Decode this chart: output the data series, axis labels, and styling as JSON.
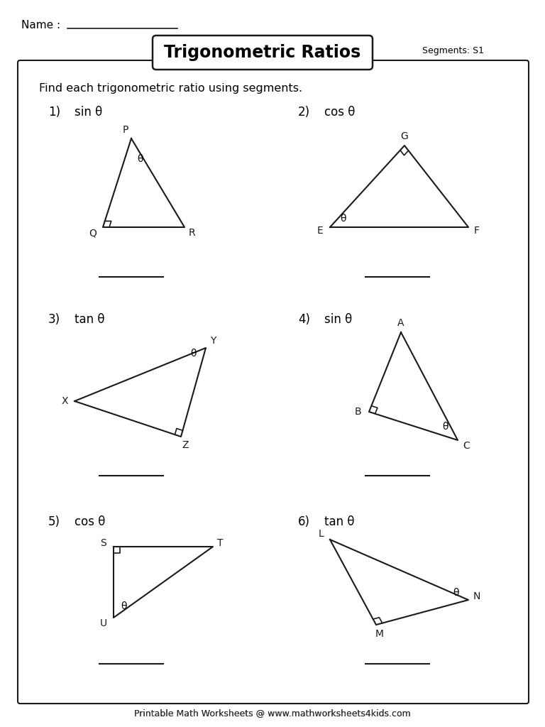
{
  "title": "Trigonometric Ratios",
  "segments_label": "Segments: S1",
  "name_label": "Name :",
  "instruction": "Find each trigonometric ratio using segments.",
  "footer": "Printable Math Worksheets @ www.mathworksheets4kids.com",
  "problems": [
    {
      "num": "1)",
      "func": "sin θ"
    },
    {
      "num": "2)",
      "func": "cos θ"
    },
    {
      "num": "3)",
      "func": "tan θ"
    },
    {
      "num": "4)",
      "func": "sin θ"
    },
    {
      "num": "5)",
      "func": "cos θ"
    },
    {
      "num": "6)",
      "func": "tan θ"
    }
  ],
  "bg_color": "#ffffff",
  "text_color": "#000000",
  "line_color": "#1a1a1a"
}
